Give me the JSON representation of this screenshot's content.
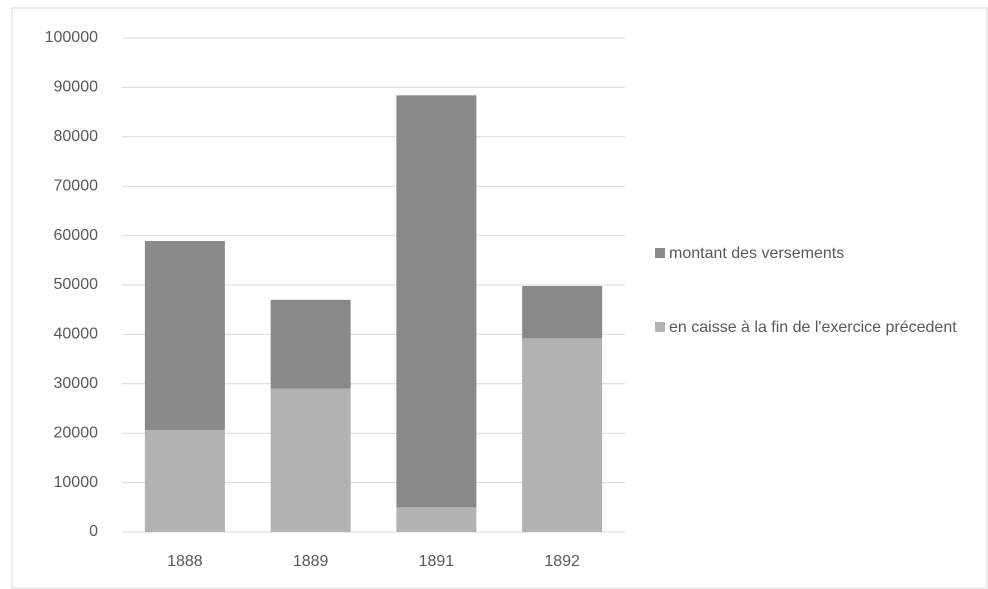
{
  "chart_data": {
    "type": "stacked_bar",
    "categories": [
      "1888",
      "1889",
      "1891",
      "1892"
    ],
    "series": [
      {
        "name": "en caisse à la fin de l'exercice précedent",
        "color": "#b2b2b2",
        "values": [
          20600,
          29000,
          5000,
          39200
        ]
      },
      {
        "name": "montant des versements",
        "color": "#898989",
        "values": [
          38300,
          18000,
          83400,
          10600
        ]
      }
    ],
    "ylim": [
      0,
      100000
    ],
    "yticks": [
      0,
      10000,
      20000,
      30000,
      40000,
      50000,
      60000,
      70000,
      80000,
      90000,
      100000
    ],
    "grid": true,
    "legend": "right"
  }
}
